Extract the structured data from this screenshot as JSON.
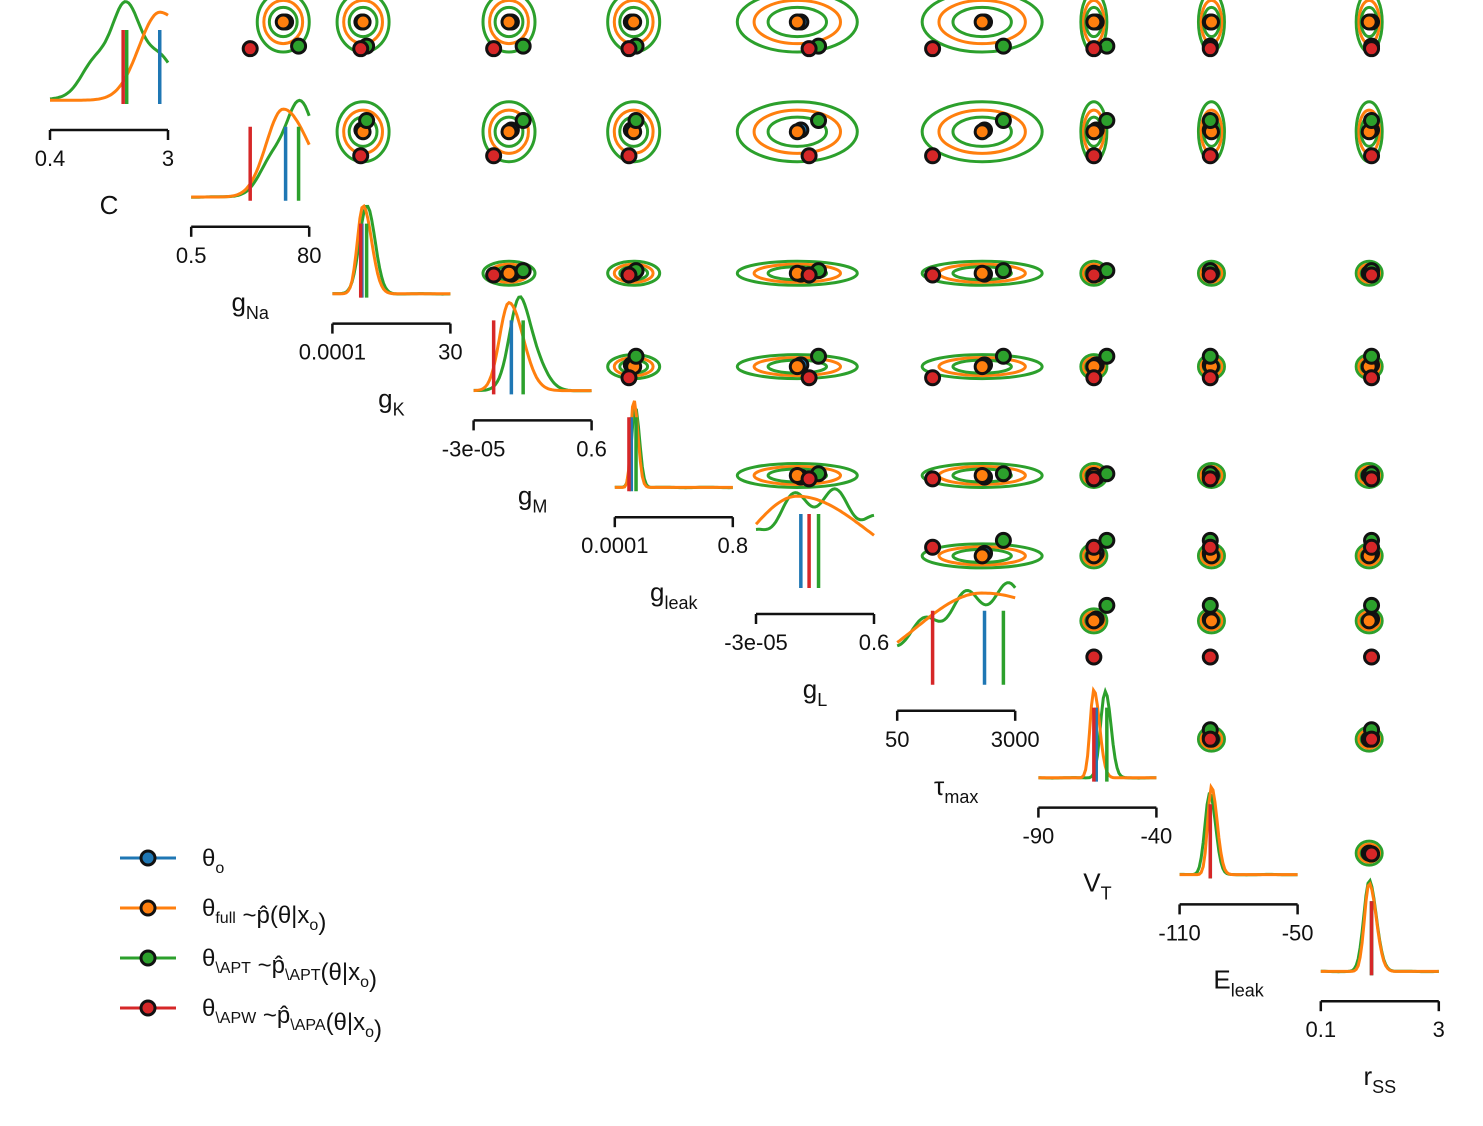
{
  "chart_data": {
    "type": "pairplot",
    "parameters": [
      {
        "name": "C",
        "label_main": "C",
        "label_sub": "",
        "limits": [
          "0.4",
          "3"
        ]
      },
      {
        "name": "g_Na",
        "label_main": "g",
        "label_sub": "Na",
        "limits": [
          "0.5",
          "80"
        ]
      },
      {
        "name": "g_K",
        "label_main": "g",
        "label_sub": "K",
        "limits": [
          "0.0001",
          "30"
        ]
      },
      {
        "name": "g_M",
        "label_main": "g",
        "label_sub": "M",
        "limits": [
          "-3e-05",
          "0.6"
        ]
      },
      {
        "name": "g_leak",
        "label_main": "g",
        "label_sub": "leak",
        "limits": [
          "0.0001",
          "0.8"
        ]
      },
      {
        "name": "g_L",
        "label_main": "g",
        "label_sub": "L",
        "limits": [
          "-3e-05",
          "0.6"
        ]
      },
      {
        "name": "tau_max",
        "label_main": "τ",
        "label_sub": "max",
        "limits": [
          "50",
          "3000"
        ]
      },
      {
        "name": "V_T",
        "label_main": "V",
        "label_sub": "T",
        "limits": [
          "-90",
          "-40"
        ]
      },
      {
        "name": "E_leak",
        "label_main": "E",
        "label_sub": "leak",
        "limits": [
          "-110",
          "-50"
        ]
      },
      {
        "name": "r_SS",
        "label_main": "r",
        "label_sub": "SS",
        "limits": [
          "0.1",
          "3"
        ]
      }
    ],
    "series": [
      {
        "key": "theta_o",
        "color": "#1f77b4",
        "legend": [
          {
            "t": "θ",
            "s": "o"
          }
        ],
        "values": [
          0.93,
          0.8,
          0.25,
          0.32,
          0.14,
          0.38,
          0.74,
          0.49,
          0.26,
          0.43
        ]
      },
      {
        "key": "theta_full",
        "color": "#ff7f0e",
        "legend": [
          {
            "t": "θ",
            "s": "full"
          },
          {
            "t": " ~p̂(θ|x"
          },
          {
            "t": "",
            "s": "o"
          },
          {
            "t": ")"
          }
        ],
        "values": [
          0.93,
          0.78,
          0.26,
          0.3,
          0.16,
          0.35,
          0.72,
          0.47,
          0.27,
          0.41
        ]
      },
      {
        "key": "theta_APT",
        "color": "#2ca02c",
        "legend": [
          {
            "t": "θ",
            "s": "\\APT"
          },
          {
            "t": " ~p̂",
            "s": "\\APT"
          },
          {
            "t": "(θ|x"
          },
          {
            "t": "",
            "s": "o"
          },
          {
            "t": ")"
          }
        ],
        "values": [
          0.65,
          0.91,
          0.29,
          0.42,
          0.18,
          0.53,
          0.9,
          0.58,
          0.26,
          0.43
        ]
      },
      {
        "key": "theta_APW",
        "color": "#d62728",
        "legend": [
          {
            "t": "θ",
            "s": "\\APW"
          },
          {
            "t": " ~p̂",
            "s": "\\APA"
          },
          {
            "t": "(θ|x"
          },
          {
            "t": "",
            "s": "o"
          },
          {
            "t": ")"
          }
        ],
        "values": [
          0.62,
          0.5,
          0.24,
          0.17,
          0.12,
          0.45,
          0.3,
          0.47,
          0.26,
          0.43
        ]
      }
    ],
    "legend_position": "lower-left"
  }
}
